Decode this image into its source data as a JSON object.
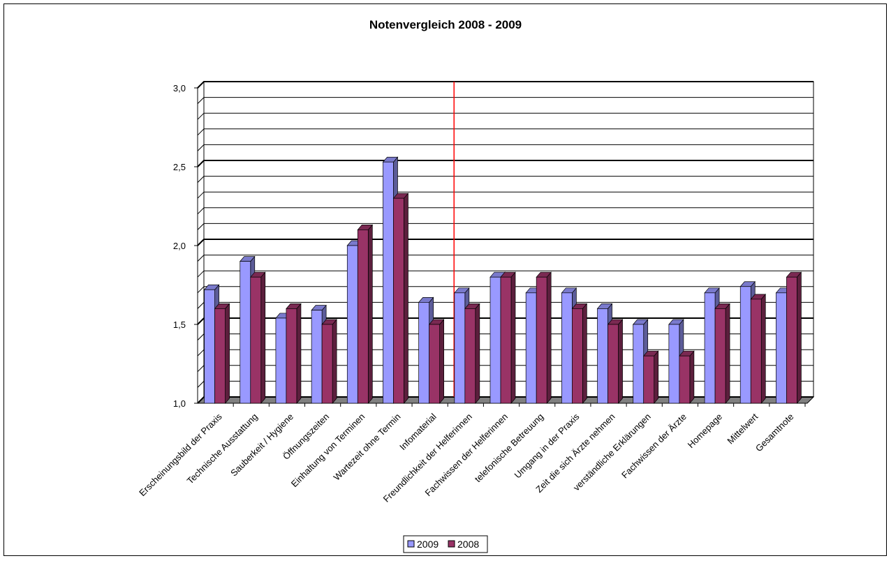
{
  "chart_data": {
    "type": "bar3d",
    "title": "Notenvergleich 2008 - 2009",
    "categories": [
      "Erscheinungsbild der Praxis",
      "Technische Ausstattung",
      "Sauberkeit / Hygiene",
      "Öffnungszeiten",
      "Einhaltung von Terminen",
      "Wartezeit ohne Termin",
      "Infomaterial",
      "Freundlichkeit der Helferinnen",
      "Fachwissen der Helferinnen",
      "telefonische Betreuung",
      "Umgang in der Praxis",
      "Zeit die sich Ärzte nehmen",
      "verständliche Erklärungen",
      "Fachwissen der Ärzte",
      "Homepage",
      "Mittelwert",
      "Gesamtnote"
    ],
    "series": [
      {
        "name": "2009",
        "color": "#9999ff",
        "values": [
          1.72,
          1.9,
          1.54,
          1.59,
          2.0,
          2.53,
          1.64,
          1.7,
          1.8,
          1.7,
          1.7,
          1.6,
          1.5,
          1.5,
          1.7,
          1.74,
          1.7
        ]
      },
      {
        "name": "2008",
        "color": "#993366",
        "values": [
          1.6,
          1.8,
          1.6,
          1.5,
          2.1,
          2.3,
          1.5,
          1.6,
          1.8,
          1.8,
          1.6,
          1.5,
          1.3,
          1.3,
          1.6,
          1.66,
          1.8
        ]
      }
    ],
    "ylim": [
      1.0,
      3.0
    ],
    "yticks": [
      {
        "value": 1.0,
        "label": "1,0"
      },
      {
        "value": 1.5,
        "label": "1,5"
      },
      {
        "value": 2.0,
        "label": "2,0"
      },
      {
        "value": 2.5,
        "label": "2,5"
      },
      {
        "value": 3.0,
        "label": "3,0"
      }
    ],
    "minor_yticks": [
      1.1,
      1.2,
      1.3,
      1.4,
      1.6,
      1.7,
      1.8,
      1.9,
      2.1,
      2.2,
      2.3,
      2.4,
      2.6,
      2.7,
      2.8,
      2.9
    ],
    "grid": true,
    "legend": "bottom"
  }
}
